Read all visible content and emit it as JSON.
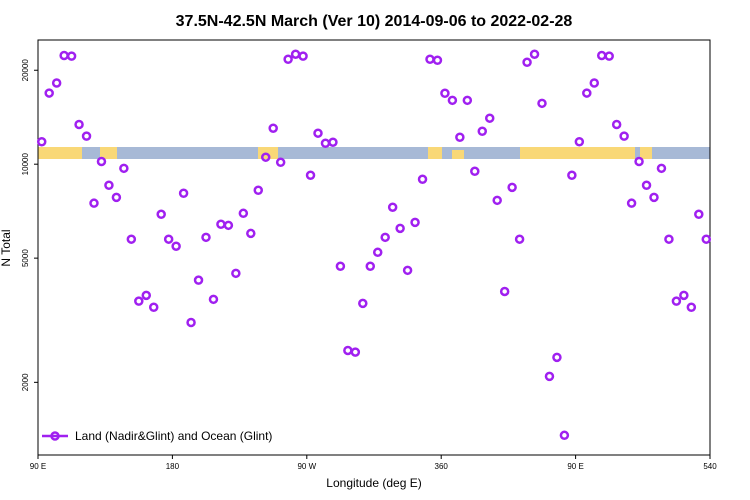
{
  "chart_data": {
    "type": "scatter",
    "title": "37.5N-42.5N March (Ver 10)   2014-09-06 to 2022-02-28",
    "x_label": "Longitude (deg E)",
    "y_label": "N Total",
    "x": [
      92.5,
      97.5,
      102.5,
      107.5,
      112.5,
      117.5,
      122.5,
      127.5,
      132.5,
      137.5,
      142.5,
      147.5,
      152.5,
      157.5,
      162.5,
      167.5,
      172.5,
      177.5,
      182.5,
      187.5,
      192.5,
      197.5,
      202.5,
      207.5,
      212.5,
      217.5,
      222.5,
      227.5,
      232.5,
      237.5,
      242.5,
      247.5,
      252.5,
      257.5,
      262.5,
      267.5,
      272.5,
      277.5,
      282.5,
      287.5,
      292.5,
      297.5,
      302.5,
      307.5,
      312.5,
      317.5,
      322.5,
      327.5,
      332.5,
      337.5,
      342.5,
      347.5,
      352.5,
      357.5,
      362.5,
      367.5,
      372.5,
      377.5,
      382.5,
      387.5,
      392.5,
      397.5,
      402.5,
      407.5,
      412.5,
      417.5,
      422.5,
      427.5,
      432.5,
      437.5,
      442.5,
      447.5,
      452.5,
      457.5,
      462.5,
      467.5,
      472.5,
      477.5,
      482.5,
      487.5,
      492.5,
      497.5,
      502.5,
      507.5,
      512.5,
      517.5,
      522.5,
      527.5,
      532.5,
      537.5
    ],
    "series": [
      {
        "name": "Land (Nadir&Glint) and Ocean (Glint)",
        "color": "#a020f0",
        "values": [
          11800,
          16900,
          18200,
          22300,
          22200,
          13400,
          12300,
          7500,
          10200,
          8560,
          7830,
          9700,
          5750,
          3640,
          3800,
          3480,
          6910,
          5750,
          5460,
          8070,
          3110,
          4250,
          5830,
          3690,
          6420,
          6370,
          4470,
          6960,
          6000,
          8250,
          10530,
          13040,
          10140,
          21690,
          22510,
          22200,
          9215,
          12570,
          11670,
          11760,
          4710,
          2530,
          2500,
          3580,
          4710,
          5220,
          5830,
          7280,
          6230,
          4570,
          6510,
          8950,
          21690,
          21530,
          16880,
          16020,
          12200,
          16020,
          9490,
          12750,
          14040,
          7660,
          3910,
          8430,
          5750,
          21210,
          22510,
          15670,
          2090,
          2405,
          1353,
          9215,
          11800,
          16900,
          18200,
          22300,
          22200,
          13400,
          12300,
          7500,
          10200,
          8560,
          7830,
          9700,
          5750,
          3640,
          3800,
          3480,
          6910,
          5750
        ]
      }
    ],
    "xlim": [
      90,
      540
    ],
    "xticks": [
      {
        "value": 90,
        "label": "90 E"
      },
      180,
      {
        "value": 270,
        "label": "90 W"
      },
      360,
      {
        "value": 450,
        "label": "90 E"
      },
      540
    ],
    "ylim": [
      1170,
      25000
    ],
    "yticks": [
      2000,
      5000,
      10000,
      20000
    ],
    "log_y": true,
    "legend": "bottomleft"
  }
}
